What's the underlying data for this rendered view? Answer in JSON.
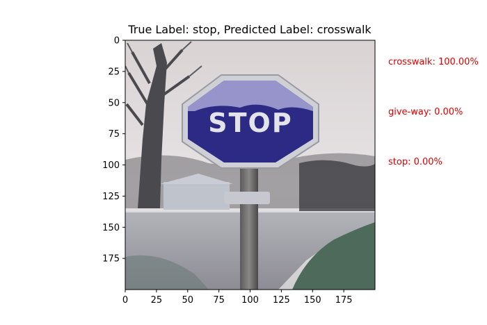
{
  "figure": {
    "title": "True Label: stop, Predicted Label: crosswalk"
  },
  "sign": {
    "text": "STOP"
  },
  "predictions": [
    {
      "label": "crosswalk",
      "value": "crosswalk: 100.00%"
    },
    {
      "label": "give-way",
      "value": "give-way: 0.00%"
    },
    {
      "label": "stop",
      "value": "stop: 0.00%"
    }
  ],
  "colors": {
    "prediction_text": "#e00000",
    "sign_face": "#2d2a86",
    "sign_border": "#cfcfd6",
    "sky": "#e9e3e3",
    "road": "#9b9aa0",
    "grass": "#4f6b5a"
  },
  "chart_data": {
    "type": "image",
    "title": "True Label: stop, Predicted Label: crosswalk",
    "xlim": [
      0,
      200
    ],
    "ylim": [
      200,
      0
    ],
    "x_ticks": [
      0,
      25,
      50,
      75,
      100,
      125,
      150,
      175
    ],
    "y_ticks": [
      0,
      25,
      50,
      75,
      100,
      125,
      150,
      175
    ],
    "x_tick_labels": [
      "0",
      "25",
      "50",
      "75",
      "100",
      "125",
      "150",
      "175"
    ],
    "y_tick_labels": [
      "0",
      "25",
      "50",
      "75",
      "100",
      "125",
      "150",
      "175"
    ]
  }
}
